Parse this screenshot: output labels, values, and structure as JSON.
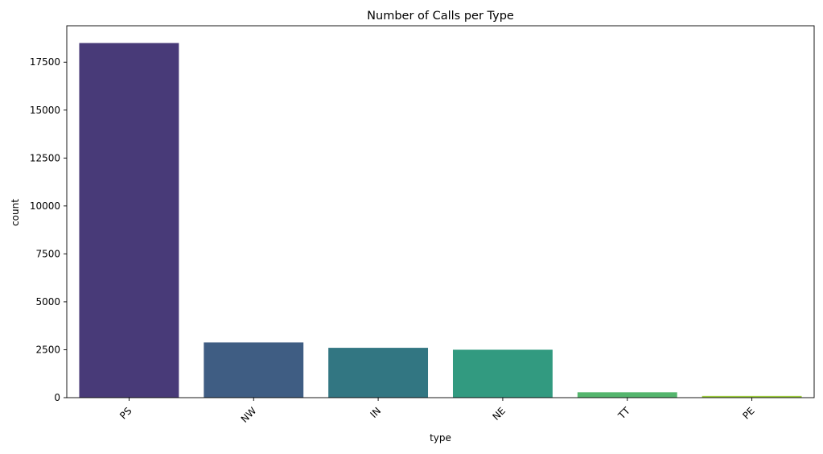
{
  "chart_data": {
    "type": "bar",
    "title": "Number of Calls per Type",
    "xlabel": "type",
    "ylabel": "count",
    "categories": [
      "PS",
      "NW",
      "IN",
      "NE",
      "TT",
      "PE"
    ],
    "values": [
      18500,
      2880,
      2600,
      2500,
      280,
      90
    ],
    "ylim": [
      0,
      19400
    ],
    "yticks": [
      0,
      2500,
      5000,
      7500,
      10000,
      12500,
      15000,
      17500
    ],
    "colors": [
      "#483a78",
      "#3f5d83",
      "#327682",
      "#329a80",
      "#54b56d",
      "#9ecd3f"
    ],
    "grid": false,
    "legend": "none"
  }
}
